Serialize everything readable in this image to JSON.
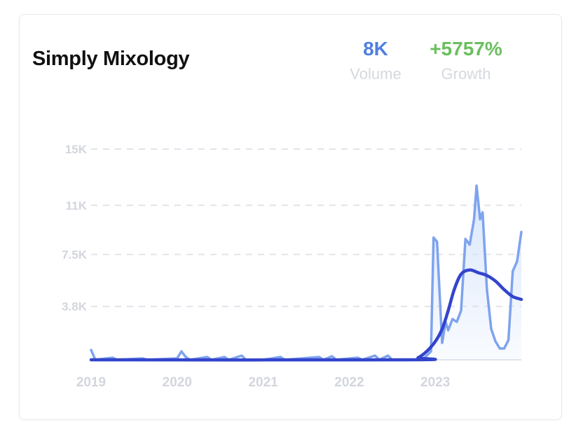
{
  "card": {
    "title": "Simply Mixology"
  },
  "metrics": {
    "volume": {
      "value": "8K",
      "label": "Volume",
      "color": "#4f7fe0"
    },
    "growth": {
      "value": "+5757%",
      "label": "Growth",
      "color": "#6abf5e"
    }
  },
  "chart_data": {
    "type": "line",
    "title": "",
    "xlabel": "",
    "ylabel": "",
    "x_tick_labels": [
      "2019",
      "2020",
      "2021",
      "2022",
      "2023"
    ],
    "y_tick_labels": [
      "15K",
      "11K",
      "7.5K",
      "3.8K"
    ],
    "y_tick_values": [
      15000,
      11000,
      7500,
      3800
    ],
    "ylim": [
      0,
      15000
    ],
    "xlim": [
      2019.0,
      2024.0
    ],
    "grid": true,
    "legend": "none",
    "colors": {
      "volume": "#7ea3ee",
      "trend": "#3344cc",
      "area": "#dbe8fb"
    },
    "series": [
      {
        "name": "",
        "style": "raw",
        "points": [
          [
            2019.0,
            700
          ],
          [
            2019.05,
            0
          ],
          [
            2019.25,
            150
          ],
          [
            2019.3,
            0
          ],
          [
            2019.6,
            100
          ],
          [
            2019.65,
            0
          ],
          [
            2020.0,
            100
          ],
          [
            2020.05,
            600
          ],
          [
            2020.1,
            200
          ],
          [
            2020.15,
            0
          ],
          [
            2020.35,
            200
          ],
          [
            2020.4,
            0
          ],
          [
            2020.55,
            200
          ],
          [
            2020.6,
            0
          ],
          [
            2020.75,
            300
          ],
          [
            2020.8,
            0
          ],
          [
            2021.0,
            0
          ],
          [
            2021.2,
            200
          ],
          [
            2021.25,
            0
          ],
          [
            2021.65,
            200
          ],
          [
            2021.7,
            0
          ],
          [
            2021.8,
            250
          ],
          [
            2021.85,
            0
          ],
          [
            2022.1,
            150
          ],
          [
            2022.15,
            0
          ],
          [
            2022.3,
            300
          ],
          [
            2022.35,
            0
          ],
          [
            2022.45,
            300
          ],
          [
            2022.5,
            0
          ],
          [
            2022.7,
            0
          ],
          [
            2022.85,
            0
          ],
          [
            2022.95,
            600
          ],
          [
            2022.98,
            8700
          ],
          [
            2023.02,
            8400
          ],
          [
            2023.05,
            4800
          ],
          [
            2023.08,
            1200
          ],
          [
            2023.12,
            2700
          ],
          [
            2023.15,
            2100
          ],
          [
            2023.2,
            2900
          ],
          [
            2023.25,
            2700
          ],
          [
            2023.3,
            3500
          ],
          [
            2023.35,
            8600
          ],
          [
            2023.4,
            8200
          ],
          [
            2023.45,
            10000
          ],
          [
            2023.48,
            12400
          ],
          [
            2023.52,
            10000
          ],
          [
            2023.55,
            10500
          ],
          [
            2023.6,
            5000
          ],
          [
            2023.65,
            2200
          ],
          [
            2023.7,
            1300
          ],
          [
            2023.75,
            800
          ],
          [
            2023.8,
            800
          ],
          [
            2023.85,
            1400
          ],
          [
            2023.9,
            6300
          ],
          [
            2023.95,
            7000
          ],
          [
            2024.0,
            9100
          ]
        ]
      },
      {
        "name": "",
        "style": "trend",
        "points": [
          [
            2019.0,
            0
          ],
          [
            2022.7,
            0
          ],
          [
            2022.8,
            150
          ],
          [
            2022.9,
            600
          ],
          [
            2023.0,
            1300
          ],
          [
            2023.08,
            2200
          ],
          [
            2023.15,
            3500
          ],
          [
            2023.22,
            5000
          ],
          [
            2023.3,
            6100
          ],
          [
            2023.4,
            6400
          ],
          [
            2023.5,
            6200
          ],
          [
            2023.6,
            6000
          ],
          [
            2023.7,
            5600
          ],
          [
            2023.8,
            5000
          ],
          [
            2023.9,
            4500
          ],
          [
            2024.0,
            4300
          ]
        ]
      }
    ]
  }
}
